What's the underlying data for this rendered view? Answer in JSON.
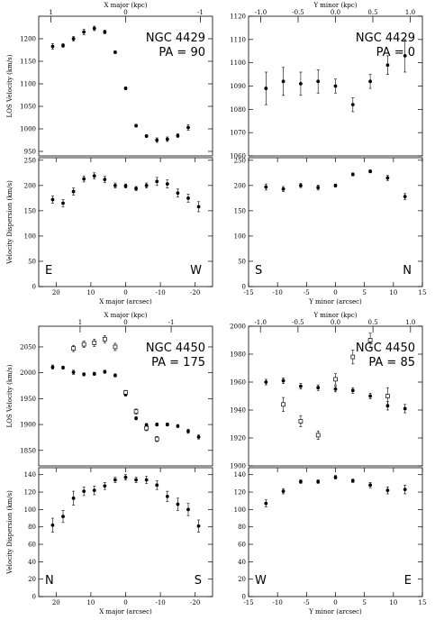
{
  "chart_data": [
    {
      "id": "p0",
      "type": "scatter",
      "xlabel": "",
      "ylabel": "LOS Velocity (km/s)",
      "top_label": "X major (kpc)",
      "xlim": [
        25,
        -25
      ],
      "ylim": [
        940,
        1250
      ],
      "xticks": [],
      "xtick_labels": [],
      "yticks": [
        950,
        1000,
        1050,
        1100,
        1150,
        1200
      ],
      "ytick_labels": [
        "950",
        "1000",
        "1050",
        "1100",
        "1150",
        "1200"
      ],
      "top_ticks": [
        21.5,
        0,
        -21.5
      ],
      "top_tick_labels": [
        "1",
        "0",
        "-1"
      ],
      "name_lines": [
        "NGC 4429",
        "PA = 90"
      ],
      "corner_left": "",
      "corner_right": "",
      "series": [
        {
          "marker": "filled",
          "x": [
            21,
            18,
            15,
            12,
            9,
            6,
            3,
            0,
            -3,
            -6,
            -9,
            -12,
            -15,
            -18
          ],
          "y": [
            1183,
            1185,
            1200,
            1215,
            1223,
            1215,
            1170,
            1090,
            1007,
            984,
            975,
            977,
            985,
            1003
          ],
          "err": [
            6,
            4,
            5,
            6,
            5,
            4,
            3,
            3,
            3,
            3,
            5,
            5,
            4,
            6
          ]
        }
      ]
    },
    {
      "id": "p1",
      "type": "scatter",
      "xlabel": "X major (arcsec)",
      "ylabel": "Velocity Dispersion (km/s)",
      "top_label": "",
      "xlim": [
        25,
        -25
      ],
      "ylim": [
        0,
        255
      ],
      "xticks": [
        20,
        10,
        0,
        -10,
        -20
      ],
      "xtick_labels": [
        "20",
        "10",
        "0",
        "-10",
        "-20"
      ],
      "yticks": [
        0,
        50,
        100,
        150,
        200,
        250
      ],
      "ytick_labels": [
        "0",
        "50",
        "100",
        "150",
        "200",
        "250"
      ],
      "top_ticks": [],
      "top_tick_labels": [],
      "name_lines": [],
      "corner_left": "E",
      "corner_right": "W",
      "series": [
        {
          "marker": "filled",
          "x": [
            21,
            18,
            15,
            12,
            9,
            6,
            3,
            0,
            -3,
            -6,
            -9,
            -12,
            -15,
            -18,
            -21
          ],
          "y": [
            172,
            165,
            188,
            213,
            219,
            212,
            200,
            199,
            194,
            200,
            208,
            203,
            185,
            175,
            158
          ],
          "err": [
            7,
            7,
            7,
            6,
            6,
            6,
            5,
            4,
            4,
            5,
            8,
            8,
            8,
            8,
            10
          ]
        }
      ]
    },
    {
      "id": "p2",
      "type": "scatter",
      "xlabel": "",
      "ylabel": "",
      "top_label": "Y minor (kpc)",
      "xlim": [
        -15,
        15
      ],
      "ylim": [
        1060,
        1120
      ],
      "xticks": [],
      "xtick_labels": [],
      "yticks": [
        1060,
        1070,
        1080,
        1090,
        1100,
        1110,
        1120
      ],
      "ytick_labels": [
        "1060",
        "1070",
        "1080",
        "1090",
        "1100",
        "1110",
        "1120"
      ],
      "top_ticks": [
        -12.9,
        -6.45,
        0,
        6.45,
        12.9
      ],
      "top_tick_labels": [
        "-1.0",
        "-0.5",
        "0.0",
        "0.5",
        "1.0"
      ],
      "name_lines": [
        "NGC 4429",
        "PA = 0"
      ],
      "corner_left": "",
      "corner_right": "",
      "series": [
        {
          "marker": "filled",
          "x": [
            -12,
            -9,
            -6,
            -3,
            0,
            3,
            6,
            9,
            12
          ],
          "y": [
            1089,
            1092,
            1091,
            1092,
            1090,
            1082,
            1092,
            1099,
            1103
          ],
          "err": [
            7,
            6,
            5,
            5,
            3,
            3,
            3,
            4,
            7
          ]
        }
      ]
    },
    {
      "id": "p3",
      "type": "scatter",
      "xlabel": "Y minor (arcsec)",
      "ylabel": "",
      "top_label": "",
      "xlim": [
        -15,
        15
      ],
      "ylim": [
        0,
        255
      ],
      "xticks": [
        -15,
        -10,
        -5,
        0,
        5,
        10,
        15
      ],
      "xtick_labels": [
        "-15",
        "-10",
        "-5",
        "0",
        "5",
        "10",
        "15"
      ],
      "yticks": [
        0,
        50,
        100,
        150,
        200,
        250
      ],
      "ytick_labels": [
        "0",
        "50",
        "100",
        "150",
        "200",
        "250"
      ],
      "top_ticks": [],
      "top_tick_labels": [],
      "name_lines": [],
      "corner_left": "S",
      "corner_right": "N",
      "series": [
        {
          "marker": "filled",
          "x": [
            -12,
            -9,
            -6,
            -3,
            0,
            3,
            6,
            9,
            12
          ],
          "y": [
            197,
            193,
            200,
            196,
            200,
            222,
            228,
            215,
            178
          ],
          "err": [
            6,
            5,
            4,
            5,
            3,
            3,
            3,
            5,
            6
          ]
        }
      ]
    },
    {
      "id": "p4",
      "type": "scatter",
      "xlabel": "",
      "ylabel": "LOS Velocity (km/s)",
      "top_label": "X major (kpc)",
      "xlim": [
        25,
        -25
      ],
      "ylim": [
        1820,
        2090
      ],
      "xticks": [],
      "xtick_labels": [],
      "yticks": [
        1850,
        1900,
        1950,
        2000,
        2050
      ],
      "ytick_labels": [
        "1850",
        "1900",
        "1950",
        "2000",
        "2050"
      ],
      "top_ticks": [
        13.1,
        0,
        -13.1
      ],
      "top_tick_labels": [
        "1",
        "0",
        "-1"
      ],
      "name_lines": [
        "NGC 4450",
        "PA = 175"
      ],
      "corner_left": "",
      "corner_right": "",
      "series": [
        {
          "marker": "filled",
          "x": [
            21,
            18,
            15,
            12,
            9,
            6,
            3,
            0,
            -3,
            -6,
            -9,
            -12,
            -15,
            -18,
            -21
          ],
          "y": [
            2011,
            2010,
            2001,
            1997,
            1998,
            2002,
            1995,
            1958,
            1912,
            1899,
            1900,
            1900,
            1897,
            1887,
            1876
          ],
          "err": [
            4,
            3,
            4,
            3,
            3,
            3,
            3,
            3,
            3,
            3,
            3,
            3,
            3,
            4,
            4
          ]
        },
        {
          "marker": "open",
          "x": [
            15,
            12,
            9,
            6,
            3,
            0,
            -3,
            -6,
            -9
          ],
          "y": [
            2047,
            2055,
            2058,
            2065,
            2050,
            1962,
            1925,
            1893,
            1872
          ],
          "err": [
            6,
            6,
            7,
            7,
            7,
            4,
            5,
            5,
            5
          ]
        }
      ]
    },
    {
      "id": "p5",
      "type": "scatter",
      "xlabel": "X major (arcsec)",
      "ylabel": "Velocity Dispersion (km/s)",
      "top_label": "",
      "xlim": [
        25,
        -25
      ],
      "ylim": [
        0,
        148
      ],
      "xticks": [
        20,
        10,
        0,
        -10,
        -20
      ],
      "xtick_labels": [
        "20",
        "10",
        "0",
        "-10",
        "-20"
      ],
      "yticks": [
        0,
        20,
        40,
        60,
        80,
        100,
        120,
        140
      ],
      "ytick_labels": [
        "0",
        "20",
        "40",
        "60",
        "80",
        "100",
        "120",
        "140"
      ],
      "top_ticks": [],
      "top_tick_labels": [],
      "name_lines": [],
      "corner_left": "N",
      "corner_right": "S",
      "series": [
        {
          "marker": "filled",
          "x": [
            21,
            18,
            15,
            12,
            9,
            6,
            3,
            0,
            -3,
            -6,
            -9,
            -12,
            -15,
            -18,
            -21
          ],
          "y": [
            82,
            92,
            113,
            121,
            122,
            127,
            134,
            137,
            134,
            134,
            128,
            115,
            106,
            100,
            81
          ],
          "err": [
            8,
            7,
            8,
            5,
            5,
            4,
            3,
            3,
            3,
            4,
            5,
            6,
            7,
            7,
            7
          ]
        }
      ]
    },
    {
      "id": "p6",
      "type": "scatter",
      "xlabel": "",
      "ylabel": "",
      "top_label": "Y minor (kpc)",
      "xlim": [
        -15,
        15
      ],
      "ylim": [
        1900,
        2000
      ],
      "xticks": [],
      "xtick_labels": [],
      "yticks": [
        1900,
        1920,
        1940,
        1960,
        1980,
        2000
      ],
      "ytick_labels": [
        "1900",
        "1920",
        "1940",
        "1960",
        "1980",
        "2000"
      ],
      "top_ticks": [
        -12.95,
        -6.47,
        0,
        6.47,
        12.95
      ],
      "top_tick_labels": [
        "-1.0",
        "-0.5",
        "0.0",
        "0.5",
        "1.0"
      ],
      "name_lines": [
        "NGC 4450",
        "PA = 85"
      ],
      "corner_left": "",
      "corner_right": "",
      "series": [
        {
          "marker": "filled",
          "x": [
            -12,
            -9,
            -6,
            -3,
            0,
            3,
            6,
            9,
            12
          ],
          "y": [
            1960,
            1961,
            1957,
            1956,
            1955,
            1954,
            1950,
            1943,
            1941
          ],
          "err": [
            2,
            2,
            2,
            2,
            2,
            2,
            2,
            3,
            3
          ]
        },
        {
          "marker": "open",
          "x": [
            -9,
            -6,
            -3,
            0,
            3,
            6,
            9
          ],
          "y": [
            1944,
            1932,
            1922,
            1962,
            1978,
            1990,
            1950
          ],
          "err": [
            5,
            4,
            3,
            4,
            5,
            5,
            6
          ]
        }
      ]
    },
    {
      "id": "p7",
      "type": "scatter",
      "xlabel": "Y minor (arcsec)",
      "ylabel": "",
      "top_label": "",
      "xlim": [
        -15,
        15
      ],
      "ylim": [
        0,
        148
      ],
      "xticks": [
        -15,
        -10,
        -5,
        0,
        5,
        10,
        15
      ],
      "xtick_labels": [
        "-15",
        "-10",
        "-5",
        "0",
        "5",
        "10",
        "15"
      ],
      "yticks": [
        0,
        20,
        40,
        60,
        80,
        100,
        120,
        140
      ],
      "ytick_labels": [
        "0",
        "20",
        "40",
        "60",
        "80",
        "100",
        "120",
        "140"
      ],
      "top_ticks": [],
      "top_tick_labels": [],
      "name_lines": [],
      "corner_left": "W",
      "corner_right": "E",
      "series": [
        {
          "marker": "filled",
          "x": [
            -12,
            -9,
            -6,
            -3,
            0,
            3,
            6,
            9,
            12
          ],
          "y": [
            107,
            121,
            132,
            132,
            137,
            133,
            128,
            122,
            123
          ],
          "err": [
            4,
            3,
            2,
            2,
            2,
            2,
            3,
            4,
            5
          ]
        }
      ]
    }
  ]
}
